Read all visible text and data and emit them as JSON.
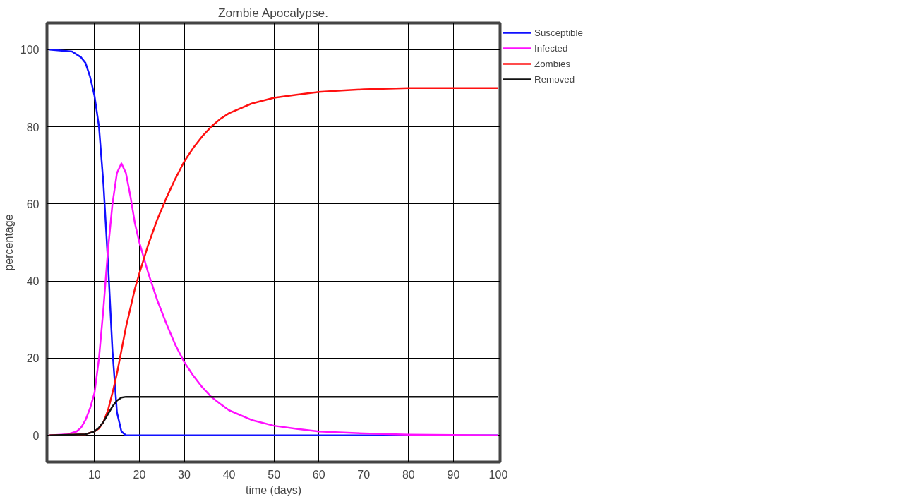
{
  "chart_data": {
    "type": "line",
    "title": "Zombie Apocalypse.",
    "xlabel": "time (days)",
    "ylabel": "percentage",
    "xlim": [
      -0.6,
      100.4
    ],
    "ylim": [
      -6.9,
      106.9
    ],
    "xticks": [
      10,
      20,
      30,
      40,
      50,
      60,
      70,
      80,
      90,
      100
    ],
    "yticks": [
      0,
      20,
      40,
      60,
      80,
      100
    ],
    "grid": true,
    "legend": "top right",
    "marker": "none",
    "line_style": "solid",
    "series": [
      {
        "name": "Susceptible",
        "color": "#1010ff",
        "x": [
          0,
          5,
          7,
          8,
          9,
          10,
          11,
          12,
          13,
          14,
          15,
          16,
          17,
          18,
          100
        ],
        "values": [
          100,
          99.5,
          98,
          96.5,
          93,
          88,
          80,
          65,
          45,
          22,
          6,
          1,
          0,
          0,
          0
        ]
      },
      {
        "name": "Infected",
        "color": "#ff10ff",
        "x": [
          0,
          4,
          6,
          7,
          8,
          9,
          10,
          11,
          12,
          13,
          14,
          15,
          16,
          17,
          18,
          19,
          20,
          22,
          24,
          26,
          28,
          30,
          32,
          34,
          36,
          38,
          40,
          45,
          50,
          55,
          60,
          70,
          80,
          100
        ],
        "values": [
          0,
          0.3,
          1,
          2,
          4,
          7,
          11,
          20,
          33,
          48,
          60,
          68,
          70.5,
          68,
          62,
          55,
          50,
          42,
          35,
          29,
          23.5,
          19,
          15.5,
          12.5,
          10,
          8.2,
          6.5,
          4,
          2.5,
          1.7,
          1,
          0.5,
          0.2,
          0
        ]
      },
      {
        "name": "Zombies",
        "color": "#ff1010",
        "x": [
          0,
          8,
          10,
          11,
          12,
          13,
          14,
          15,
          16,
          17,
          18,
          19,
          20,
          22,
          24,
          26,
          28,
          30,
          32,
          34,
          36,
          38,
          40,
          45,
          50,
          55,
          60,
          65,
          70,
          80,
          100
        ],
        "values": [
          0,
          0.3,
          1,
          1.8,
          3.5,
          6.5,
          11,
          16,
          22,
          28,
          33,
          38,
          42,
          49.5,
          56,
          61.5,
          66.5,
          71,
          74.5,
          77.5,
          80,
          82,
          83.5,
          86,
          87.5,
          88.3,
          89,
          89.4,
          89.7,
          90,
          90
        ]
      },
      {
        "name": "Removed",
        "color": "#111111",
        "x": [
          0,
          8,
          10,
          11,
          12,
          13,
          14,
          15,
          16,
          17,
          100
        ],
        "values": [
          0,
          0.3,
          1,
          2,
          3.5,
          5.5,
          7.5,
          9,
          9.8,
          10,
          10
        ]
      }
    ]
  }
}
